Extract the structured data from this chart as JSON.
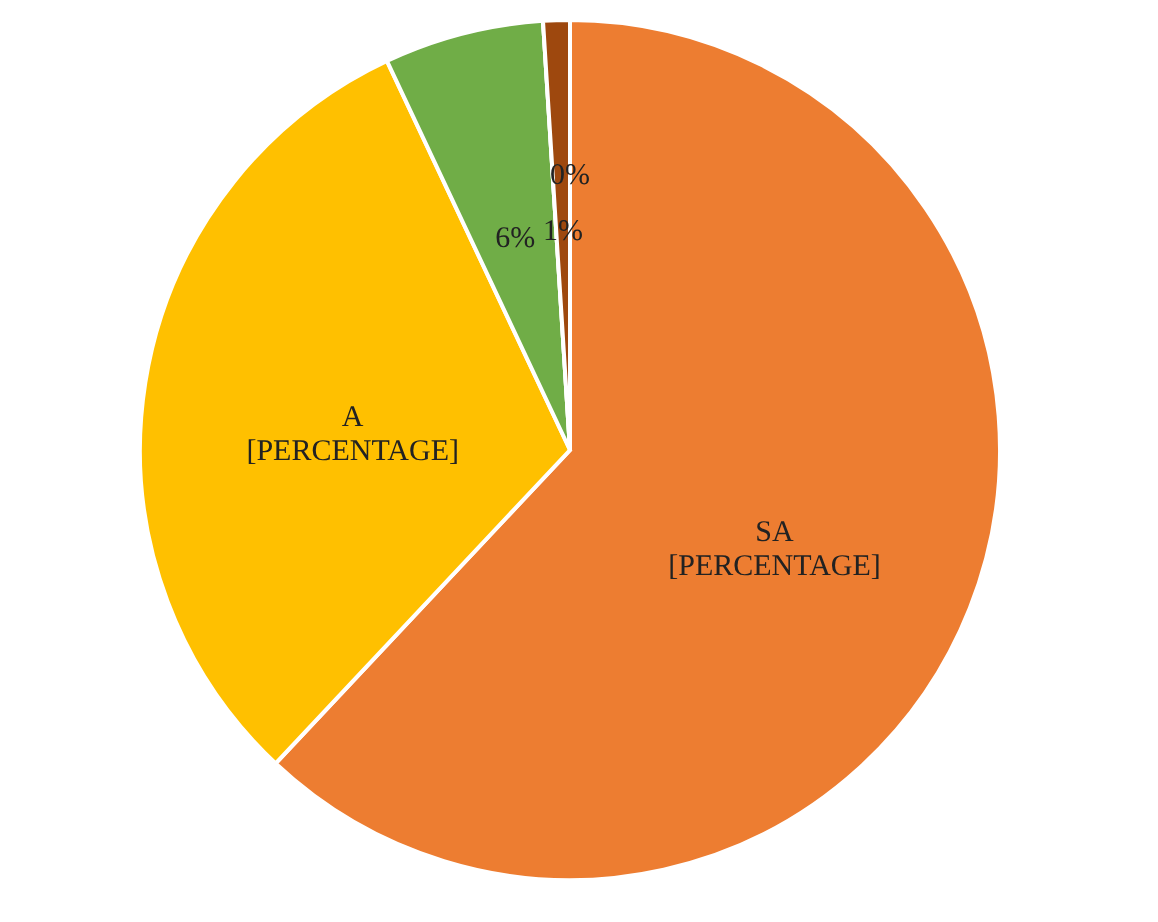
{
  "chart_data": {
    "type": "pie",
    "categories": [
      "SA",
      "A",
      null,
      null,
      null
    ],
    "values": [
      62,
      31,
      6,
      0,
      1
    ],
    "colors": [
      "#ed7d31",
      "#ffc000",
      "#70ad47",
      "#4472c4",
      "#9e480e"
    ],
    "value_labels": [
      "[PERCENTAGE]",
      "[PERCENTAGE]",
      "6%",
      "0%",
      "1%"
    ],
    "legend": false
  }
}
